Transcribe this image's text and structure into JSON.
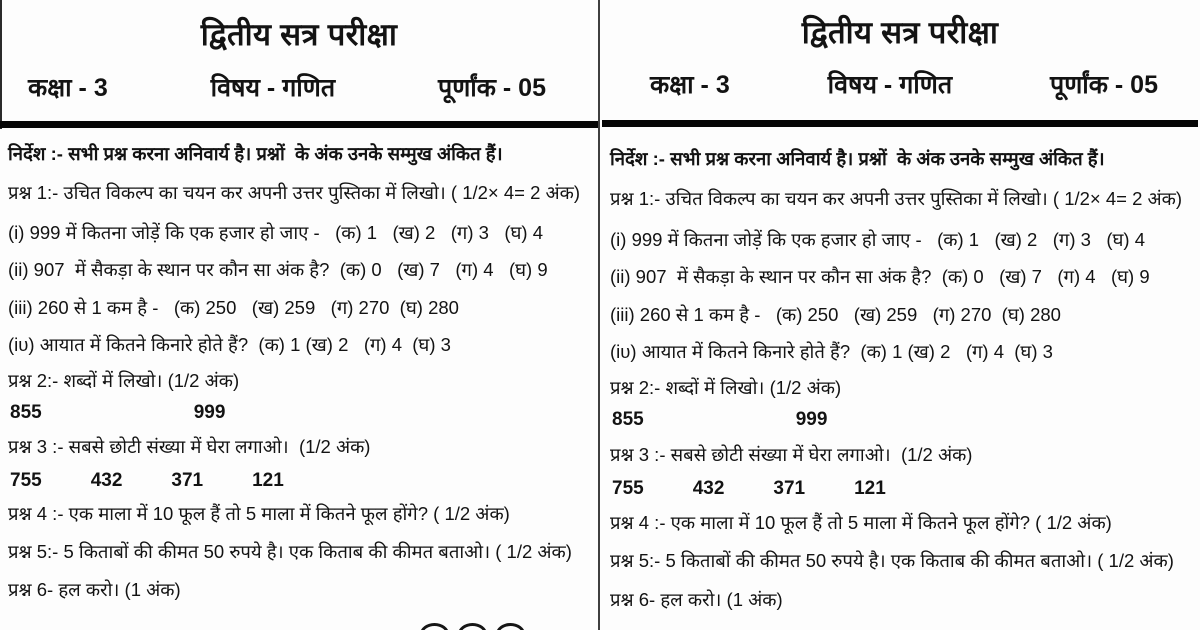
{
  "colors": {
    "background": "#fdfdfd",
    "text": "#131313",
    "column_divider": "#3f3f3f",
    "header_rule": "#060606"
  },
  "paper": {
    "title": "द्वितीय सत्र परीक्षा",
    "class_label": "कक्षा  - 3",
    "subject_label": "विषय - गणित",
    "marks_label": "पूर्णांक - 05",
    "instruction": "निर्देश :- सभी प्रश्न करना अनिवार्य है। प्रश्नों  के अंक उनके सम्मुख अंकित हैं।",
    "q1": "प्रश्न 1:- उचित विकल्प का चयन कर अपनी उत्तर पुस्तिका में लिखो। ( 1/2× 4= 2 अंक)",
    "q1_i": "(i) 999 में कितना जोड़ें कि एक हजार हो जाए -   (क) 1   (ख) 2   (ग) 3   (घ) 4",
    "q1_ii": "(ii) 907  में सैकड़ा के स्थान पर कौन सा अंक है?  (क) 0   (ख) 7   (ग) 4   (घ) 9",
    "q1_iii": "(iii) 260 से 1 कम है -   (क) 250   (ख) 259   (ग) 270  (घ) 280",
    "q1_iv": "(iυ) आयात में कितने किनारे होते हैं?  (क) 1 (ख) 2   (ग) 4  (घ) 3",
    "q2": "प्रश्न 2:- शब्दों में लिखो। (1/2 अंक)",
    "q2_numbers": [
      "855",
      "999"
    ],
    "q3": "प्रश्न 3 :- सबसे छोटी संख्या में घेरा लगाओ।  (1/2 अंक)",
    "q3_numbers": [
      "755",
      "432",
      "371",
      "121"
    ],
    "q4": "प्रश्न 4 :- एक माला में 10 फूल हैं तो 5 माला में कितने फूल होंगे? ( 1/2 अंक)",
    "q5": "प्रश्न 5:- 5 किताबों की कीमत 50 रुपये है। एक किताब की कीमत बताओ। ( 1/2 अंक)",
    "q6": "प्रश्न 6- हल करो। (1 अंक)"
  }
}
